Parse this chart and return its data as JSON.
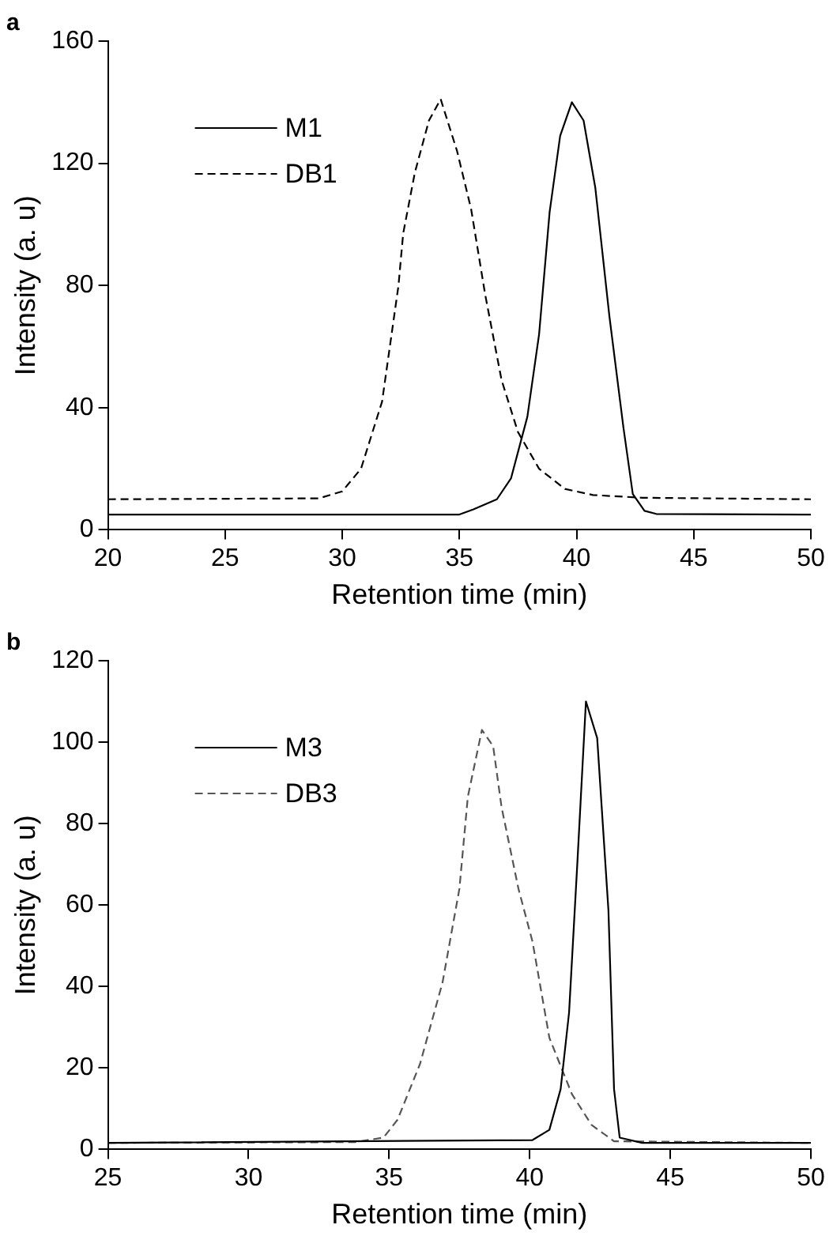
{
  "chart_data": [
    {
      "type": "line",
      "title": "a",
      "xlabel": "Retention time (min)",
      "ylabel": "Intensity (a. u)",
      "xlim": [
        20,
        50
      ],
      "xticks": [
        20,
        25,
        30,
        35,
        40,
        45,
        50
      ],
      "ylim": [
        0,
        160
      ],
      "yticks": [
        0,
        40,
        80,
        120,
        160
      ],
      "grid": false,
      "legend": "top left",
      "marker": "none",
      "series": [
        {
          "name": "M1",
          "color": "#000000",
          "line_style": "solid",
          "x": [
            20,
            35,
            35.6,
            36.6,
            37.2,
            37.9,
            38.4,
            38.85,
            39.3,
            39.8,
            40.3,
            40.8,
            41.4,
            42.0,
            42.4,
            42.9,
            43.4,
            50
          ],
          "values": [
            5,
            5,
            6.7,
            10,
            16.8,
            37,
            64,
            104,
            129,
            140,
            134,
            112,
            70,
            33.5,
            11.7,
            6.2,
            5.2,
            5
          ]
        },
        {
          "name": "DB1",
          "color": "#000000",
          "line_style": "dashed",
          "x": [
            20,
            29,
            30,
            30.8,
            31.7,
            32.4,
            32.6,
            33.1,
            33.7,
            34.2,
            34.9,
            35.5,
            36.1,
            36.8,
            37.5,
            38.4,
            39.5,
            40.7,
            42.8,
            50
          ],
          "values": [
            10,
            10.3,
            12.6,
            20,
            42,
            80,
            97,
            117,
            134,
            141,
            124,
            105,
            77,
            49,
            32,
            20,
            13.4,
            11.4,
            10.5,
            10
          ]
        }
      ]
    },
    {
      "type": "line",
      "title": "b",
      "xlabel": "Retention time (min)",
      "ylabel": "Intensity (a. u)",
      "xlim": [
        25,
        50
      ],
      "xticks": [
        25,
        30,
        35,
        40,
        45,
        50
      ],
      "ylim": [
        0,
        120
      ],
      "yticks": [
        0,
        20,
        40,
        60,
        80,
        100,
        120
      ],
      "grid": false,
      "legend": "top left",
      "marker": "none",
      "series": [
        {
          "name": "M3",
          "color": "#000000",
          "line_style": "solid",
          "x": [
            25,
            40.1,
            40.7,
            41.1,
            41.4,
            41.7,
            42.0,
            42.4,
            42.8,
            43.0,
            43.2,
            44.0,
            50
          ],
          "values": [
            1.6,
            2.3,
            4.8,
            14.8,
            33.6,
            71,
            110,
            101,
            58.7,
            14.8,
            2.9,
            1.6,
            1.6
          ]
        },
        {
          "name": "DB3",
          "color": "#555555",
          "line_style": "dashed",
          "x": [
            25,
            33.8,
            34.8,
            35.3,
            36.1,
            36.9,
            37.5,
            37.8,
            38.3,
            38.7,
            39.0,
            39.6,
            40.1,
            40.7,
            41.5,
            42.2,
            43.0,
            50
          ],
          "values": [
            1.6,
            1.8,
            2.9,
            7.3,
            21,
            41,
            64,
            86.6,
            103,
            99,
            84,
            64,
            51,
            27.4,
            13.6,
            6,
            2,
            1.6
          ]
        }
      ]
    }
  ]
}
